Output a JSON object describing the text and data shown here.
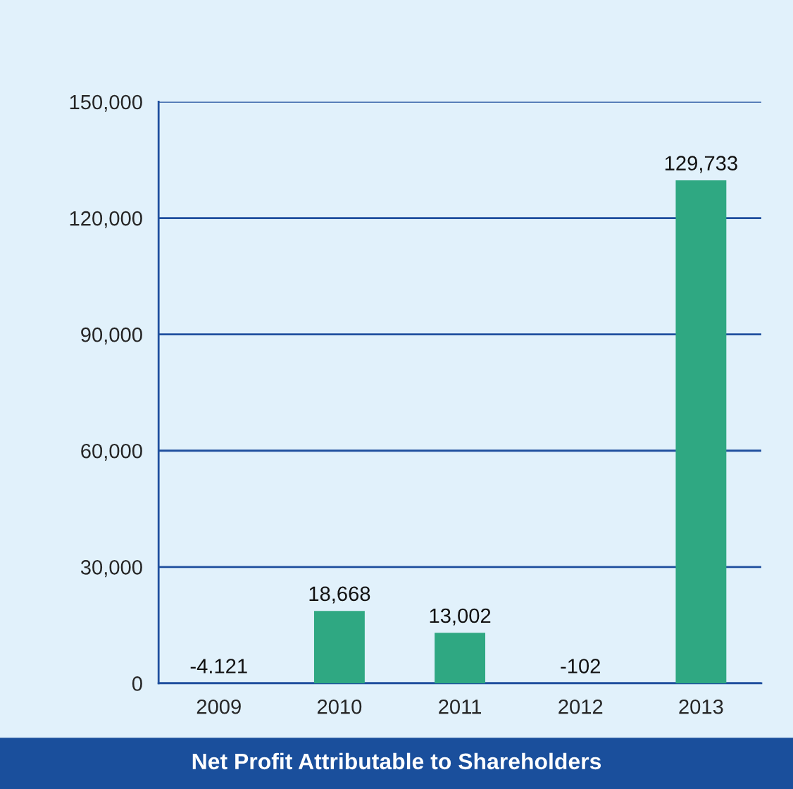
{
  "chart_data": {
    "type": "bar",
    "title": "Net Profit Attributable to Shareholders",
    "categories": [
      "2009",
      "2010",
      "2011",
      "2012",
      "2013"
    ],
    "values": [
      null,
      18668,
      13002,
      null,
      129733
    ],
    "value_labels": [
      "-4.121",
      "18,668",
      "13,002",
      "-102",
      "129,733"
    ],
    "color": "#2fa882",
    "ylim": [
      0,
      150000
    ],
    "yticks": [
      {
        "value": 0,
        "label": "0"
      },
      {
        "value": 30000,
        "label": "30,000"
      },
      {
        "value": 60000,
        "label": "60,000"
      },
      {
        "value": 90000,
        "label": "90,000"
      },
      {
        "value": 120000,
        "label": "120,000"
      },
      {
        "value": 150000,
        "label": "150,000"
      }
    ],
    "grid": "y",
    "legend": false
  }
}
